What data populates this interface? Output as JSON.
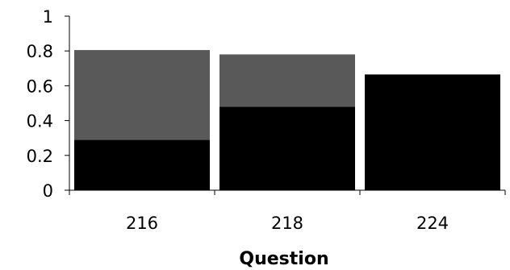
{
  "chart_data": {
    "type": "bar",
    "stacked": true,
    "title": "",
    "xlabel": "Question",
    "ylabel": "",
    "categories": [
      "216",
      "218",
      "224"
    ],
    "series": [
      {
        "color": "#000000",
        "values": [
          0.29,
          0.48,
          0.665
        ]
      },
      {
        "color": "#595959",
        "values": [
          0.515,
          0.3,
          0.0
        ]
      }
    ],
    "ylim": [
      0,
      1
    ],
    "yticks": [
      "0",
      "0.2",
      "0.4",
      "0.6",
      "0.8",
      "1"
    ],
    "grid": false,
    "legend": "none"
  }
}
